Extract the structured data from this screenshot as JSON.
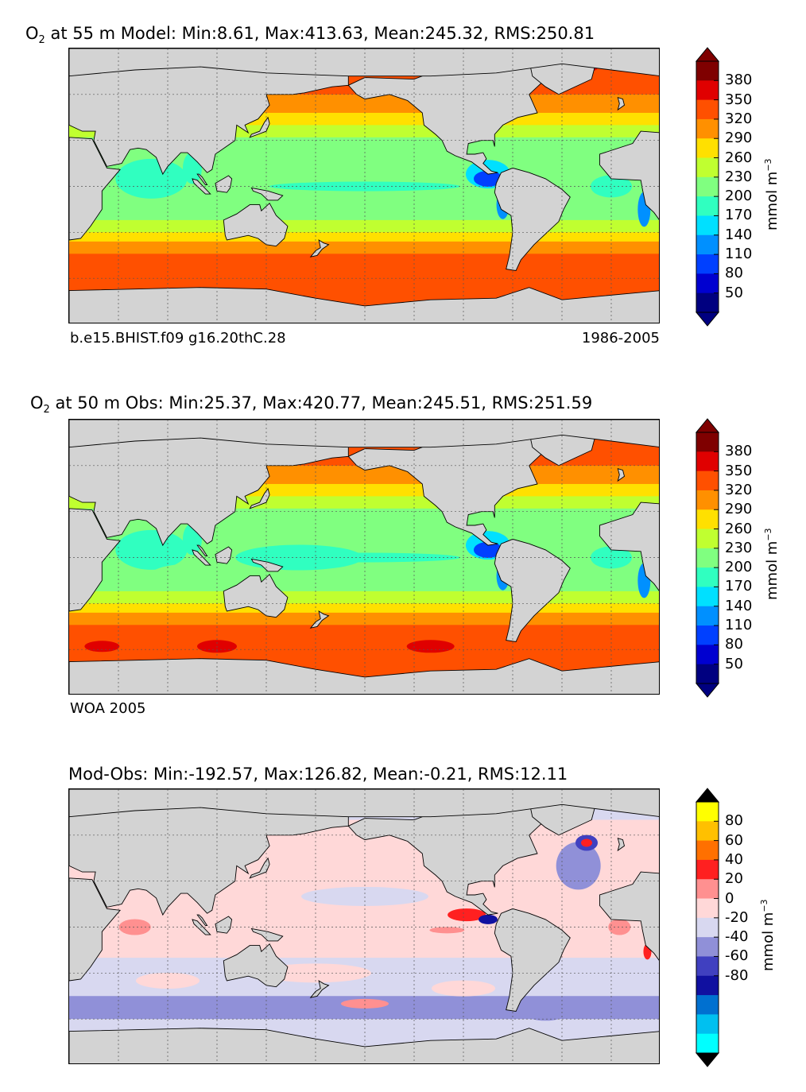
{
  "panels": [
    {
      "title_species": "O",
      "title_subscript": "2",
      "title_rest": " at 55 m Model: Min:8.61, Max:413.63, Mean:245.32, RMS:250.81",
      "caption_left": "b.e15.BHIST.f09 g16.20thC.28",
      "caption_right": "1986-2005",
      "colorbar": {
        "labels": [
          "380",
          "350",
          "320",
          "290",
          "260",
          "230",
          "200",
          "170",
          "140",
          "110",
          "80",
          "50"
        ],
        "unit_main": "mmol m",
        "unit_exp": "−3",
        "colors": [
          "#7f0000",
          "#e00000",
          "#ff5000",
          "#ff9000",
          "#ffe000",
          "#c0ff30",
          "#80ff80",
          "#30ffc0",
          "#00e0ff",
          "#0090ff",
          "#0040ff",
          "#0000d0",
          "#000080"
        ],
        "max_arrow": "#7f0000",
        "min_arrow": "#000080"
      }
    },
    {
      "title_species": "O",
      "title_subscript": "2",
      "title_rest": " at 50 m Obs: Min:25.37, Max:420.77, Mean:245.51, RMS:251.59",
      "caption_left": "WOA 2005",
      "caption_right": "",
      "colorbar": {
        "labels": [
          "380",
          "350",
          "320",
          "290",
          "260",
          "230",
          "200",
          "170",
          "140",
          "110",
          "80",
          "50"
        ],
        "unit_main": "mmol m",
        "unit_exp": "−3",
        "colors": [
          "#7f0000",
          "#e00000",
          "#ff5000",
          "#ff9000",
          "#ffe000",
          "#c0ff30",
          "#80ff80",
          "#30ffc0",
          "#00e0ff",
          "#0090ff",
          "#0040ff",
          "#0000d0",
          "#000080"
        ],
        "max_arrow": "#7f0000",
        "min_arrow": "#000080"
      }
    },
    {
      "title_species": "",
      "title_subscript": "",
      "title_rest": "Mod-Obs: Min:-192.57, Max:126.82, Mean:-0.21, RMS:12.11",
      "caption_left": "",
      "caption_right": "",
      "colorbar": {
        "labels": [
          "80",
          "60",
          "40",
          "20",
          "0",
          "-20",
          "-40",
          "-60",
          "-80"
        ],
        "unit_main": "mmol m",
        "unit_exp": "−3",
        "colors": [
          "#ffff00",
          "#ffc000",
          "#ff7000",
          "#ff2020",
          "#ff9090",
          "#ffd8d8",
          "#d8d8f0",
          "#9090d8",
          "#4040c0",
          "#1010a0",
          "#0070d0",
          "#00c0f0",
          "#00ffff"
        ],
        "max_arrow": "#000000",
        "min_arrow": "#000000"
      }
    }
  ],
  "map_colors": {
    "land": "#d3d3d3",
    "coast": "#000000",
    "grid": "#555555"
  }
}
